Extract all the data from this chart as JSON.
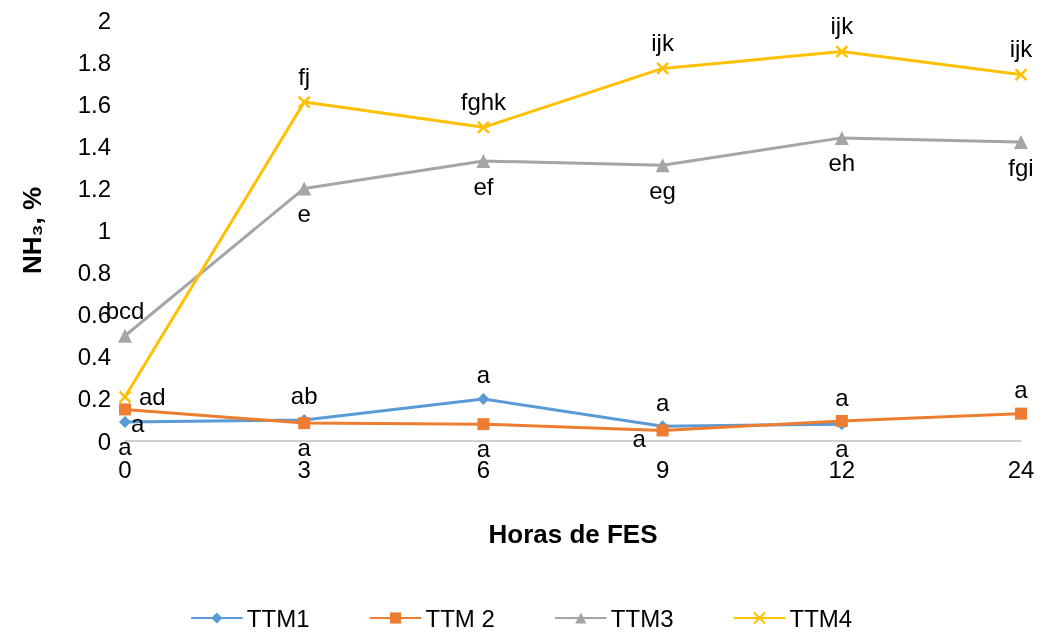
{
  "chart_data": {
    "type": "line",
    "xlabel": "Horas de FES",
    "ylabel": "NH₃, %",
    "categories": [
      "0",
      "3",
      "6",
      "9",
      "12",
      "24"
    ],
    "series": [
      {
        "name": "TTM1",
        "color": "#5b9bd5",
        "marker": "diamond",
        "values": [
          0.09,
          0.1,
          0.2,
          0.07,
          0.08,
          null
        ],
        "value_labels": [
          "a",
          "ab",
          "a",
          "a",
          "a",
          null
        ]
      },
      {
        "name": "TTM 2",
        "color": "#ed7d31",
        "marker": "square",
        "values": [
          0.15,
          0.085,
          0.08,
          0.05,
          0.095,
          0.13
        ],
        "value_labels": [
          "a",
          "a",
          "a",
          "a",
          "a",
          "a"
        ]
      },
      {
        "name": "TTM3",
        "color": "#a5a5a5",
        "marker": "triangle",
        "values": [
          0.5,
          1.2,
          1.33,
          1.31,
          1.44,
          1.42
        ],
        "value_labels": [
          "bcd",
          "e",
          "ef",
          "eg",
          "eh",
          "fgi"
        ]
      },
      {
        "name": "TTM4",
        "color": "#ffc000",
        "marker": "cross",
        "values": [
          0.21,
          1.61,
          1.49,
          1.77,
          1.85,
          1.74
        ],
        "value_labels": [
          "ad",
          "fj",
          "fghk",
          "ijk",
          "ijk",
          "ijk"
        ]
      }
    ],
    "ylim": [
      0,
      2
    ],
    "yticks": [
      0,
      0.2,
      0.4,
      0.6,
      0.8,
      1,
      1.2,
      1.4,
      1.6,
      1.8,
      2
    ],
    "grid": false,
    "legend": "bottom",
    "line_style": "solid"
  }
}
